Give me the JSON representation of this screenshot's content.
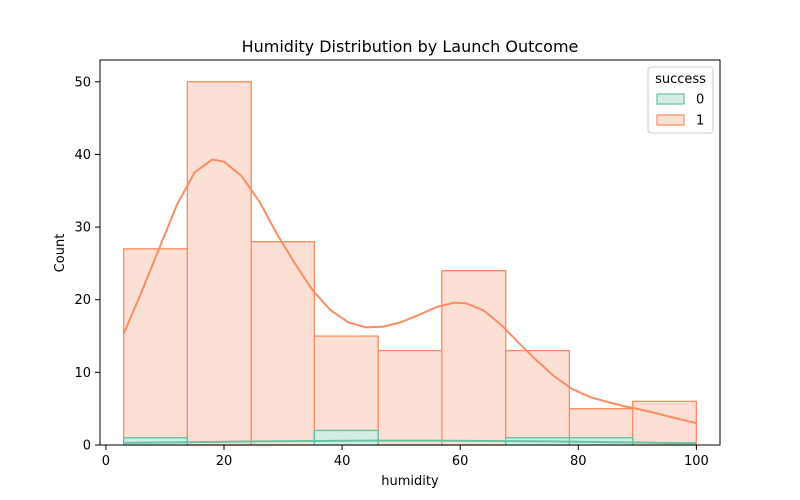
{
  "chart_data": {
    "type": "histogram",
    "title": "Humidity Distribution by Launch Outcome",
    "xlabel": "humidity",
    "ylabel": "Count",
    "xlim": [
      -1,
      104
    ],
    "ylim": [
      0,
      53
    ],
    "xticks": [
      0,
      20,
      40,
      60,
      80,
      100
    ],
    "yticks": [
      0,
      10,
      20,
      30,
      40,
      50
    ],
    "bin_edges": [
      3,
      13.8,
      24.6,
      35.3,
      46.1,
      56.9,
      67.7,
      78.5,
      89.2,
      100
    ],
    "grid": false,
    "legend": {
      "title": "success",
      "position": "top-right"
    },
    "series": [
      {
        "name": "0",
        "edge_color": "#66c2a5",
        "fill_color": "#d3ede4",
        "counts": [
          1,
          0,
          0,
          2,
          0,
          0,
          1,
          1,
          0
        ],
        "kde": {
          "x": [
            3,
            15,
            25,
            35,
            45,
            55,
            65,
            75,
            85,
            95,
            100
          ],
          "y": [
            0.3,
            0.4,
            0.5,
            0.55,
            0.6,
            0.6,
            0.55,
            0.5,
            0.4,
            0.3,
            0.25
          ]
        }
      },
      {
        "name": "1",
        "edge_color": "#fc8d62",
        "fill_color": "#fde0d5",
        "counts": [
          27,
          50,
          28,
          15,
          13,
          24,
          13,
          5,
          6
        ],
        "kde": {
          "x": [
            3,
            6,
            9,
            12,
            15,
            18,
            20,
            23,
            26,
            29,
            32,
            35,
            38,
            41,
            44,
            47,
            50,
            53,
            56,
            59,
            61,
            64,
            67,
            70,
            73,
            76,
            79,
            82,
            85,
            88,
            91,
            94,
            97,
            100
          ],
          "y": [
            15.3,
            21,
            27,
            33,
            37.5,
            39.3,
            39,
            37,
            33.5,
            29,
            25,
            21.3,
            18.6,
            16.9,
            16.2,
            16.3,
            16.9,
            17.9,
            19,
            19.6,
            19.5,
            18.5,
            16.5,
            14,
            11.6,
            9.4,
            7.7,
            6.6,
            5.9,
            5.3,
            4.8,
            4.2,
            3.6,
            3.0
          ]
        }
      }
    ]
  }
}
